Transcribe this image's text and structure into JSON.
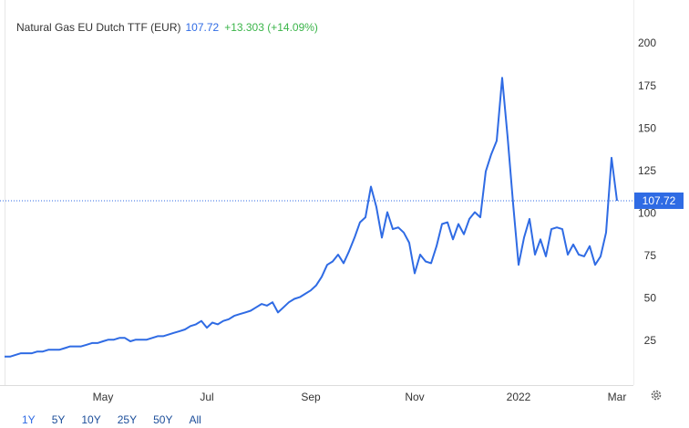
{
  "chart_data": {
    "type": "line",
    "title": "Natural Gas EU Dutch TTF (EUR)",
    "change": "+13.303 (+14.09%)",
    "categories": [
      null,
      null,
      null,
      null,
      null,
      null,
      null,
      null,
      null,
      null,
      null,
      null,
      null,
      null,
      null,
      null,
      null,
      null,
      "May",
      null,
      null,
      null,
      null,
      null,
      null,
      null,
      null,
      null,
      null,
      null,
      null,
      null,
      null,
      null,
      null,
      null,
      null,
      "Jul",
      null,
      null,
      null,
      null,
      null,
      null,
      null,
      null,
      null,
      null,
      null,
      null,
      null,
      null,
      null,
      null,
      null,
      null,
      "Sep",
      null,
      null,
      null,
      null,
      null,
      null,
      null,
      null,
      null,
      null,
      null,
      null,
      null,
      null,
      null,
      null,
      null,
      null,
      "Nov",
      null,
      null,
      null,
      null,
      null,
      null,
      null,
      null,
      null,
      null,
      null,
      null,
      null,
      null,
      null,
      null,
      null,
      null,
      "2022",
      null,
      null,
      null,
      null,
      null,
      null,
      null,
      null,
      null,
      null,
      null,
      null,
      null,
      null,
      null,
      null,
      null,
      "Mar"
    ],
    "series": [
      {
        "name": "Natural Gas EU Dutch TTF (EUR)",
        "color": "#2f6be4",
        "values": [
          16,
          16,
          17,
          18,
          18,
          18,
          19,
          19,
          20,
          20,
          20,
          21,
          22,
          22,
          22,
          23,
          24,
          24,
          25,
          26,
          26,
          27,
          27,
          25,
          26,
          26,
          26,
          27,
          28,
          28,
          29,
          30,
          31,
          32,
          34,
          35,
          37,
          33,
          36,
          35,
          37,
          38,
          40,
          41,
          42,
          43,
          45,
          47,
          46,
          48,
          42,
          45,
          48,
          50,
          51,
          53,
          55,
          58,
          63,
          70,
          72,
          76,
          71,
          78,
          86,
          95,
          98,
          116,
          104,
          86,
          101,
          91,
          92,
          89,
          83,
          65,
          76,
          72,
          71,
          81,
          94,
          95,
          85,
          94,
          88,
          97,
          101,
          98,
          125,
          135,
          143,
          180,
          145,
          106,
          70,
          86,
          97,
          76,
          85,
          75,
          91,
          92,
          91,
          76,
          82,
          76,
          75,
          81,
          70,
          75,
          89,
          133,
          107.72
        ]
      }
    ],
    "ylim": [
      0,
      225
    ],
    "yticks": [
      25,
      50,
      75,
      100,
      125,
      150,
      175,
      200
    ],
    "ranges": [
      "1Y",
      "5Y",
      "10Y",
      "25Y",
      "50Y",
      "All"
    ]
  }
}
